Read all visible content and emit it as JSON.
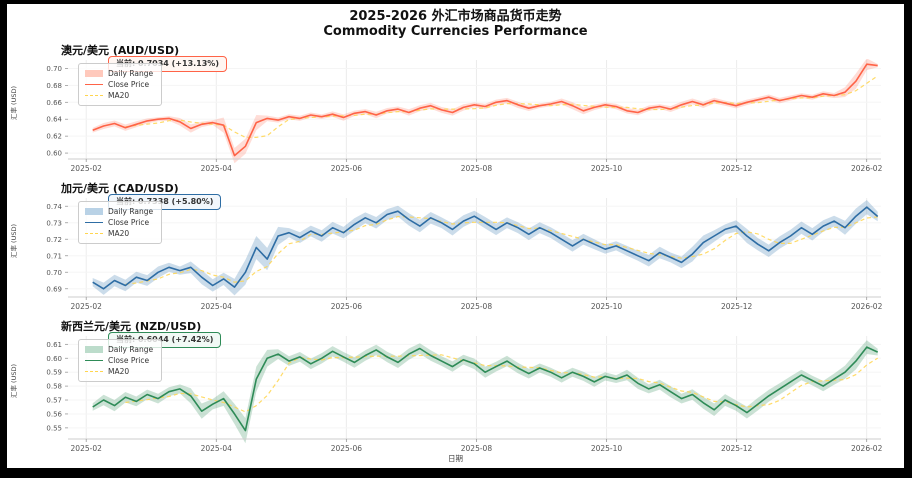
{
  "figure": {
    "title_line1": "2025-2026 外汇市场商品货币走势",
    "title_line2": "Commodity Currencies Performance"
  },
  "axes": {
    "x_label": "日期",
    "x_ticks": [
      "2025-02",
      "2025-04",
      "2025-06",
      "2025-08",
      "2025-10",
      "2025-12",
      "2026-02"
    ],
    "x_tick_months": [
      0,
      2,
      4,
      6,
      8,
      10,
      12
    ],
    "xlim_months": [
      -0.28,
      12.22
    ],
    "y_axis_label": "汇率 (USD)"
  },
  "legend": {
    "items": [
      "Daily Range",
      "Close Price",
      "MA20"
    ]
  },
  "chart_data": [
    {
      "type": "line",
      "pair": "AUD/USD",
      "title": "澳元/美元 (AUD/USD)",
      "annotation": "当前: 0.7034 (+13.13%)",
      "ylabel": "汇率 (USD)",
      "ylim": [
        0.593,
        0.71
      ],
      "yticks": [
        0.6,
        0.62,
        0.64,
        0.66,
        0.68,
        0.7
      ],
      "colors": {
        "line": "#ff6347",
        "band": "rgba(255,99,71,0.22)",
        "band_swatch": "#ffc9bc",
        "ma": "#ffd54f",
        "annotation_bg": "#fff6f2"
      },
      "series_names": [
        "Close Price",
        "Daily Range",
        "MA20"
      ],
      "values": [
        0.627,
        0.632,
        0.635,
        0.63,
        0.634,
        0.638,
        0.64,
        0.641,
        0.637,
        0.629,
        0.634,
        0.636,
        0.633,
        0.597,
        0.608,
        0.636,
        0.641,
        0.639,
        0.643,
        0.641,
        0.645,
        0.643,
        0.646,
        0.642,
        0.647,
        0.649,
        0.645,
        0.65,
        0.652,
        0.648,
        0.653,
        0.656,
        0.651,
        0.648,
        0.654,
        0.657,
        0.655,
        0.66,
        0.662,
        0.657,
        0.653,
        0.656,
        0.658,
        0.661,
        0.656,
        0.65,
        0.654,
        0.657,
        0.655,
        0.65,
        0.648,
        0.653,
        0.655,
        0.652,
        0.657,
        0.661,
        0.657,
        0.662,
        0.659,
        0.656,
        0.66,
        0.663,
        0.666,
        0.662,
        0.665,
        0.668,
        0.666,
        0.67,
        0.668,
        0.672,
        0.685,
        0.705,
        0.7034
      ]
    },
    {
      "type": "line",
      "pair": "CAD/USD",
      "title": "加元/美元 (CAD/USD)",
      "annotation": "当前: 0.7338 (+5.80%)",
      "ylabel": "汇率 (USD)",
      "ylim": [
        0.685,
        0.745
      ],
      "yticks": [
        0.69,
        0.7,
        0.71,
        0.72,
        0.73,
        0.74
      ],
      "colors": {
        "line": "#2e6da4",
        "band": "rgba(70,130,180,0.28)",
        "band_swatch": "#b9d2e6",
        "ma": "#ffd54f",
        "annotation_bg": "#f2f7fc"
      },
      "series_names": [
        "Close Price",
        "Daily Range",
        "MA20"
      ],
      "values": [
        0.694,
        0.69,
        0.695,
        0.692,
        0.697,
        0.695,
        0.7,
        0.703,
        0.701,
        0.703,
        0.697,
        0.692,
        0.696,
        0.691,
        0.7,
        0.715,
        0.708,
        0.722,
        0.724,
        0.721,
        0.725,
        0.722,
        0.727,
        0.724,
        0.729,
        0.733,
        0.73,
        0.735,
        0.737,
        0.732,
        0.728,
        0.733,
        0.73,
        0.726,
        0.731,
        0.734,
        0.73,
        0.726,
        0.73,
        0.727,
        0.723,
        0.727,
        0.724,
        0.72,
        0.716,
        0.72,
        0.717,
        0.714,
        0.716,
        0.713,
        0.71,
        0.707,
        0.712,
        0.709,
        0.706,
        0.711,
        0.718,
        0.722,
        0.726,
        0.728,
        0.722,
        0.717,
        0.713,
        0.718,
        0.722,
        0.727,
        0.723,
        0.728,
        0.731,
        0.727,
        0.734,
        0.7395,
        0.7338
      ]
    },
    {
      "type": "line",
      "pair": "NZD/USD",
      "title": "新西兰元/美元 (NZD/USD)",
      "annotation": "当前: 0.6044 (+7.42%)",
      "ylabel": "汇率 (USD)",
      "ylim": [
        0.542,
        0.616
      ],
      "yticks": [
        0.55,
        0.56,
        0.57,
        0.58,
        0.59,
        0.6,
        0.61
      ],
      "colors": {
        "line": "#2e8b57",
        "band": "rgba(46,139,87,0.25)",
        "band_swatch": "#bcdccb",
        "ma": "#ffd54f",
        "annotation_bg": "#f1f9f5"
      },
      "series_names": [
        "Close Price",
        "Daily Range",
        "MA20"
      ],
      "values": [
        0.565,
        0.57,
        0.566,
        0.572,
        0.569,
        0.574,
        0.571,
        0.576,
        0.578,
        0.573,
        0.562,
        0.567,
        0.571,
        0.56,
        0.548,
        0.585,
        0.6,
        0.603,
        0.598,
        0.601,
        0.596,
        0.6,
        0.605,
        0.601,
        0.597,
        0.602,
        0.606,
        0.601,
        0.597,
        0.603,
        0.607,
        0.602,
        0.598,
        0.594,
        0.599,
        0.596,
        0.59,
        0.594,
        0.598,
        0.593,
        0.589,
        0.593,
        0.59,
        0.586,
        0.59,
        0.587,
        0.583,
        0.587,
        0.585,
        0.588,
        0.582,
        0.578,
        0.581,
        0.576,
        0.571,
        0.574,
        0.568,
        0.563,
        0.57,
        0.566,
        0.561,
        0.567,
        0.573,
        0.578,
        0.583,
        0.588,
        0.584,
        0.58,
        0.585,
        0.59,
        0.598,
        0.608,
        0.6044
      ]
    }
  ]
}
